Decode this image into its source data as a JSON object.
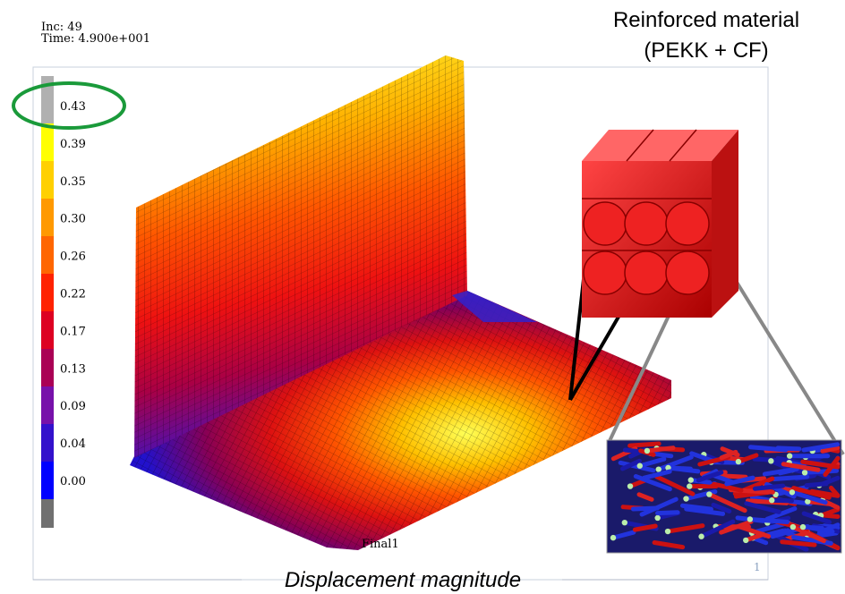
{
  "header": {
    "inc": "Inc:  49",
    "time": "Time:  4.900e+001"
  },
  "legend": {
    "labels": [
      "0.43",
      "0.39",
      "0.35",
      "0.30",
      "0.26",
      "0.22",
      "0.17",
      "0.13",
      "0.09",
      "0.04",
      "0.00"
    ]
  },
  "inset": {
    "title_line1": "Reinforced material",
    "title_line2": "(PEKK + CF)"
  },
  "viewport": {
    "step": "Final1",
    "page": "1"
  },
  "caption": "Displacement magnitude"
}
